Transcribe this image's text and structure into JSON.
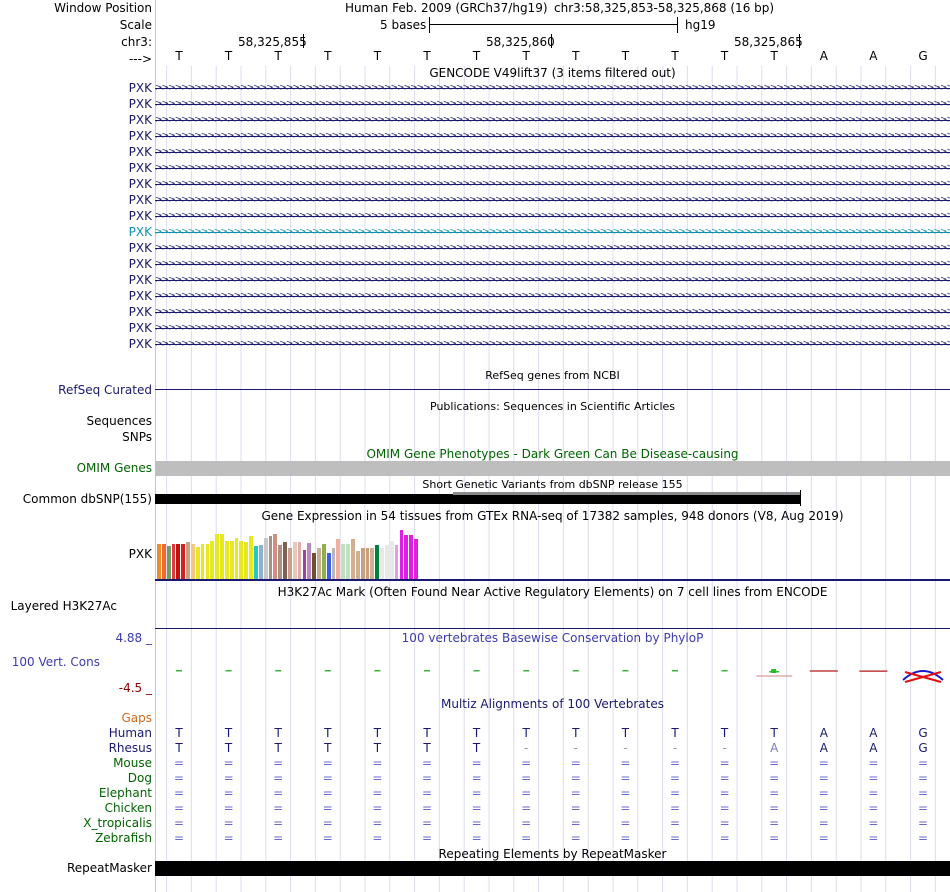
{
  "header": {
    "window_position_label": "Window Position",
    "scale_label": "Scale",
    "chrom_label": "chr3:",
    "strand_label": "--->",
    "assembly_text": "Human Feb. 2009 (GRCh37/hg19)",
    "position_text": "chr3:58,325,853-58,325,868 (16 bp)",
    "scale_text": "5 bases",
    "scale_db": "hg19",
    "coords": [
      "58,325,855",
      "58,325,860",
      "58,325,865"
    ]
  },
  "bases": [
    "T",
    "T",
    "T",
    "T",
    "T",
    "T",
    "T",
    "T",
    "T",
    "T",
    "T",
    "T",
    "T",
    "A",
    "A",
    "G"
  ],
  "gencode": {
    "title": "GENCODE V49lift37 (3 items filtered out)",
    "transcripts": [
      {
        "label": "PXK",
        "color": "#191970"
      },
      {
        "label": "PXK",
        "color": "#191970"
      },
      {
        "label": "PXK",
        "color": "#191970"
      },
      {
        "label": "PXK",
        "color": "#191970"
      },
      {
        "label": "PXK",
        "color": "#191970"
      },
      {
        "label": "PXK",
        "color": "#191970"
      },
      {
        "label": "PXK",
        "color": "#191970"
      },
      {
        "label": "PXK",
        "color": "#191970"
      },
      {
        "label": "PXK",
        "color": "#191970"
      },
      {
        "label": "PXK",
        "color": "#1090b0"
      },
      {
        "label": "PXK",
        "color": "#191970"
      },
      {
        "label": "PXK",
        "color": "#191970"
      },
      {
        "label": "PXK",
        "color": "#191970"
      },
      {
        "label": "PXK",
        "color": "#191970"
      },
      {
        "label": "PXK",
        "color": "#191970"
      },
      {
        "label": "PXK",
        "color": "#191970"
      },
      {
        "label": "PXK",
        "color": "#191970"
      }
    ]
  },
  "refseq": {
    "title": "RefSeq genes from NCBI",
    "label": "RefSeq Curated"
  },
  "publications": {
    "title": "Publications: Sequences in Scientific Articles",
    "label1": "Sequences",
    "label2": "SNPs"
  },
  "omim": {
    "title": "OMIM Gene Phenotypes - Dark Green Can Be Disease-causing",
    "label": "OMIM Genes"
  },
  "dbsnp": {
    "title": "Short Genetic Variants from dbSNP release 155",
    "label": "Common dbSNP(155)"
  },
  "gtex": {
    "title": "Gene Expression in 54 tissues from GTEx RNA-seq of 17382 samples, 948 donors (V8, Aug 2019)",
    "label": "PXK",
    "levels": [
      0.68,
      0.68,
      0.63,
      0.68,
      0.68,
      0.68,
      0.71,
      0.68,
      0.61,
      0.68,
      0.68,
      0.74,
      0.87,
      0.87,
      0.74,
      0.74,
      0.79,
      0.74,
      0.71,
      0.82,
      0.63,
      0.65,
      0.78,
      0.82,
      0.87,
      0.65,
      0.71,
      0.6,
      0.71,
      0.71,
      0.55,
      0.69,
      0.5,
      0.6,
      0.67,
      0.5,
      0.6,
      0.76,
      0.68,
      0.68,
      0.76,
      0.53,
      0.6,
      0.6,
      0.6,
      0.65,
      0.6,
      0.65,
      0.74,
      0.65,
      0.95,
      0.85,
      0.85,
      0.76
    ],
    "colors": [
      "#f08a2a",
      "#f06a2a",
      "#7a9a6a",
      "#e03a3a",
      "#c01010",
      "#d02020",
      "#c8a080",
      "#f0c880",
      "#e8e820",
      "#e8e820",
      "#e8e820",
      "#e8e820",
      "#e8e820",
      "#e8e820",
      "#e8e820",
      "#e8e820",
      "#e8e820",
      "#e8e820",
      "#e8e820",
      "#e8e820",
      "#20c8c8",
      "#90b0d0",
      "#c8c8c8",
      "#a89080",
      "#d09080",
      "#b09080",
      "#806050",
      "#c8a090",
      "#e8c8b8",
      "#e0b0a8",
      "#a040a0",
      "#b888c0",
      "#705030",
      "#c8b090",
      "#90b050",
      "#4060e0",
      "#b8b8b8",
      "#f0b0a0",
      "#c0e0c0",
      "#c0e0c0",
      "#d0b090",
      "#d0b090",
      "#c8a080",
      "#c8a080",
      "#d0b090",
      "#008040",
      "#e8e8e8",
      "#e8e8e8",
      "#e8e8e8",
      "#e0a0e0",
      "#e020e0",
      "#e020e0",
      "#e020e0",
      "#e020e0"
    ]
  },
  "h3k27ac": {
    "title": "H3K27Ac Mark (Often Found Near Active Regulatory Elements) on 7 cell lines from ENCODE",
    "label": "Layered H3K27Ac"
  },
  "phylop": {
    "title": "100 vertebrates Basewise Conservation by PhyloP",
    "label": "100 Vert. Cons",
    "ymax": "4.88 _",
    "ymin": "-4.5 _",
    "scores": [
      0.02,
      0.02,
      0.02,
      0.02,
      0.02,
      0.02,
      0.02,
      0.02,
      0.02,
      0.02,
      0.02,
      0.02,
      0.1,
      -0.05,
      -0.08,
      -0.6
    ]
  },
  "multiz": {
    "title": "Multiz Alignments of 100 Vertebrates",
    "gaps_label": "Gaps",
    "species": [
      {
        "name": "Human",
        "color": "#191970",
        "bases": [
          "T",
          "T",
          "T",
          "T",
          "T",
          "T",
          "T",
          "T",
          "T",
          "T",
          "T",
          "T",
          "T",
          "A",
          "A",
          "G"
        ]
      },
      {
        "name": "Rhesus",
        "color": "#191970",
        "bases": [
          "T",
          "T",
          "T",
          "T",
          "T",
          "T",
          "T",
          "-",
          "-",
          "-",
          "-",
          "-",
          "A",
          "A",
          "A",
          "G"
        ]
      },
      {
        "name": "Mouse",
        "color": "#006400",
        "bases": [
          "=",
          "=",
          "=",
          "=",
          "=",
          "=",
          "=",
          "=",
          "=",
          "=",
          "=",
          "=",
          "=",
          "=",
          "=",
          "="
        ]
      },
      {
        "name": "Dog",
        "color": "#006400",
        "bases": [
          "=",
          "=",
          "=",
          "=",
          "=",
          "=",
          "=",
          "=",
          "=",
          "=",
          "=",
          "=",
          "=",
          "=",
          "=",
          "="
        ]
      },
      {
        "name": "Elephant",
        "color": "#006400",
        "bases": [
          "=",
          "=",
          "=",
          "=",
          "=",
          "=",
          "=",
          "=",
          "=",
          "=",
          "=",
          "=",
          "=",
          "=",
          "=",
          "="
        ]
      },
      {
        "name": "Chicken",
        "color": "#006400",
        "bases": [
          "=",
          "=",
          "=",
          "=",
          "=",
          "=",
          "=",
          "=",
          "=",
          "=",
          "=",
          "=",
          "=",
          "=",
          "=",
          "="
        ]
      },
      {
        "name": "X_tropicalis",
        "color": "#006400",
        "bases": [
          "=",
          "=",
          "=",
          "=",
          "=",
          "=",
          "=",
          "=",
          "=",
          "=",
          "=",
          "=",
          "=",
          "=",
          "=",
          "="
        ]
      },
      {
        "name": "Zebrafish",
        "color": "#006400",
        "bases": [
          "=",
          "=",
          "=",
          "=",
          "=",
          "=",
          "=",
          "=",
          "=",
          "=",
          "=",
          "=",
          "=",
          "=",
          "=",
          "="
        ]
      }
    ]
  },
  "repeatmasker": {
    "title": "Repeating Elements by RepeatMasker",
    "label": "RepeatMasker"
  }
}
